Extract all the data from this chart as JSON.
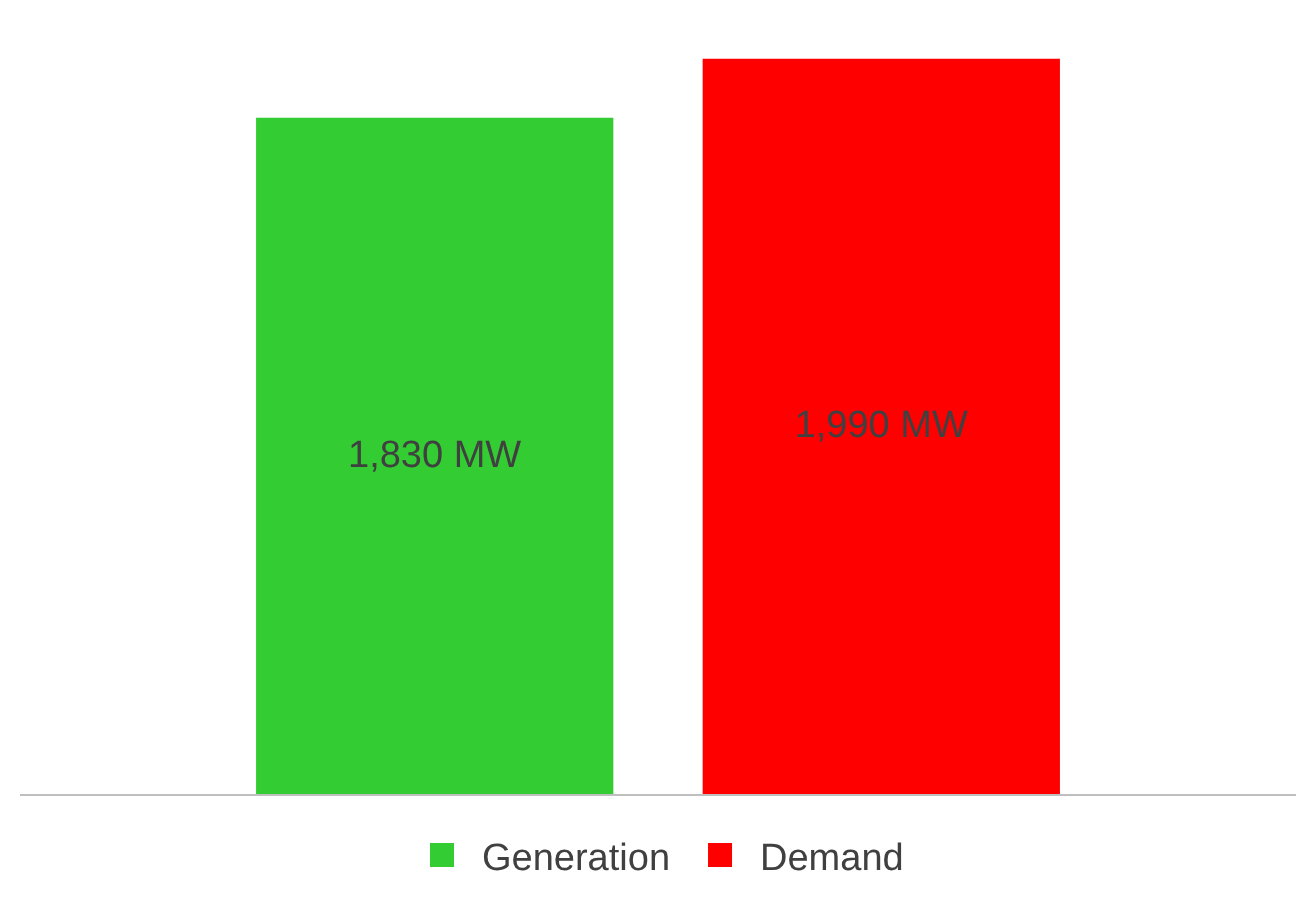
{
  "chart_data": {
    "type": "bar",
    "categories": [
      null
    ],
    "series": [
      {
        "name": "Generation",
        "color": "#33cc33",
        "values": [
          1830
        ],
        "value_labels": [
          "1,830 MW"
        ]
      },
      {
        "name": "Demand",
        "color": "#ff0000",
        "values": [
          1990
        ],
        "value_labels": [
          "1,990 MW"
        ]
      }
    ],
    "legend": "bottom",
    "tick_labels": false
  }
}
